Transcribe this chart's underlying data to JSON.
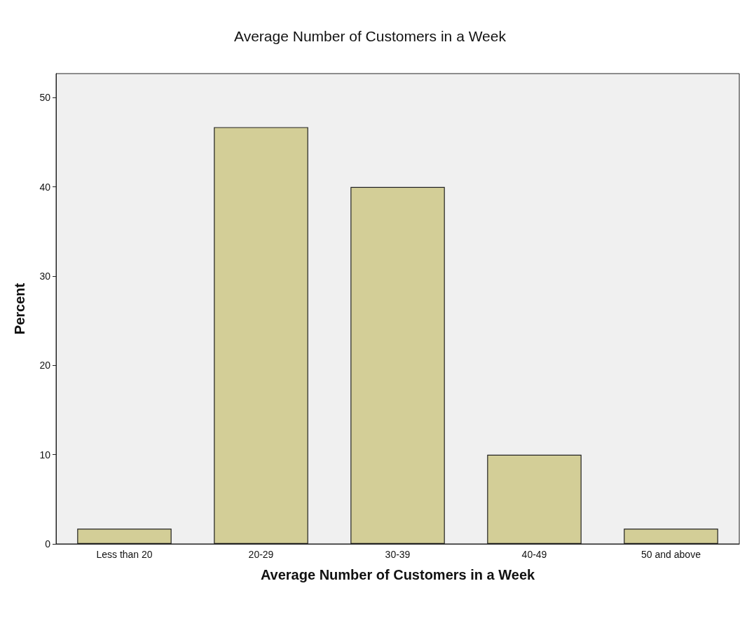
{
  "chart_data": {
    "type": "bar",
    "title": "Average Number of Customers in a Week",
    "xlabel": "Average Number of Customers in a Week",
    "ylabel": "Percent",
    "categories": [
      "Less than 20",
      "20-29",
      "30-39",
      "40-49",
      "50 and above"
    ],
    "values": [
      1.7,
      46.7,
      40.0,
      10.0,
      1.7
    ],
    "color": "#d3ce97",
    "ylim": [
      0,
      52.7
    ],
    "yticks": [
      0,
      10,
      20,
      30,
      40,
      50
    ],
    "grid": false
  }
}
